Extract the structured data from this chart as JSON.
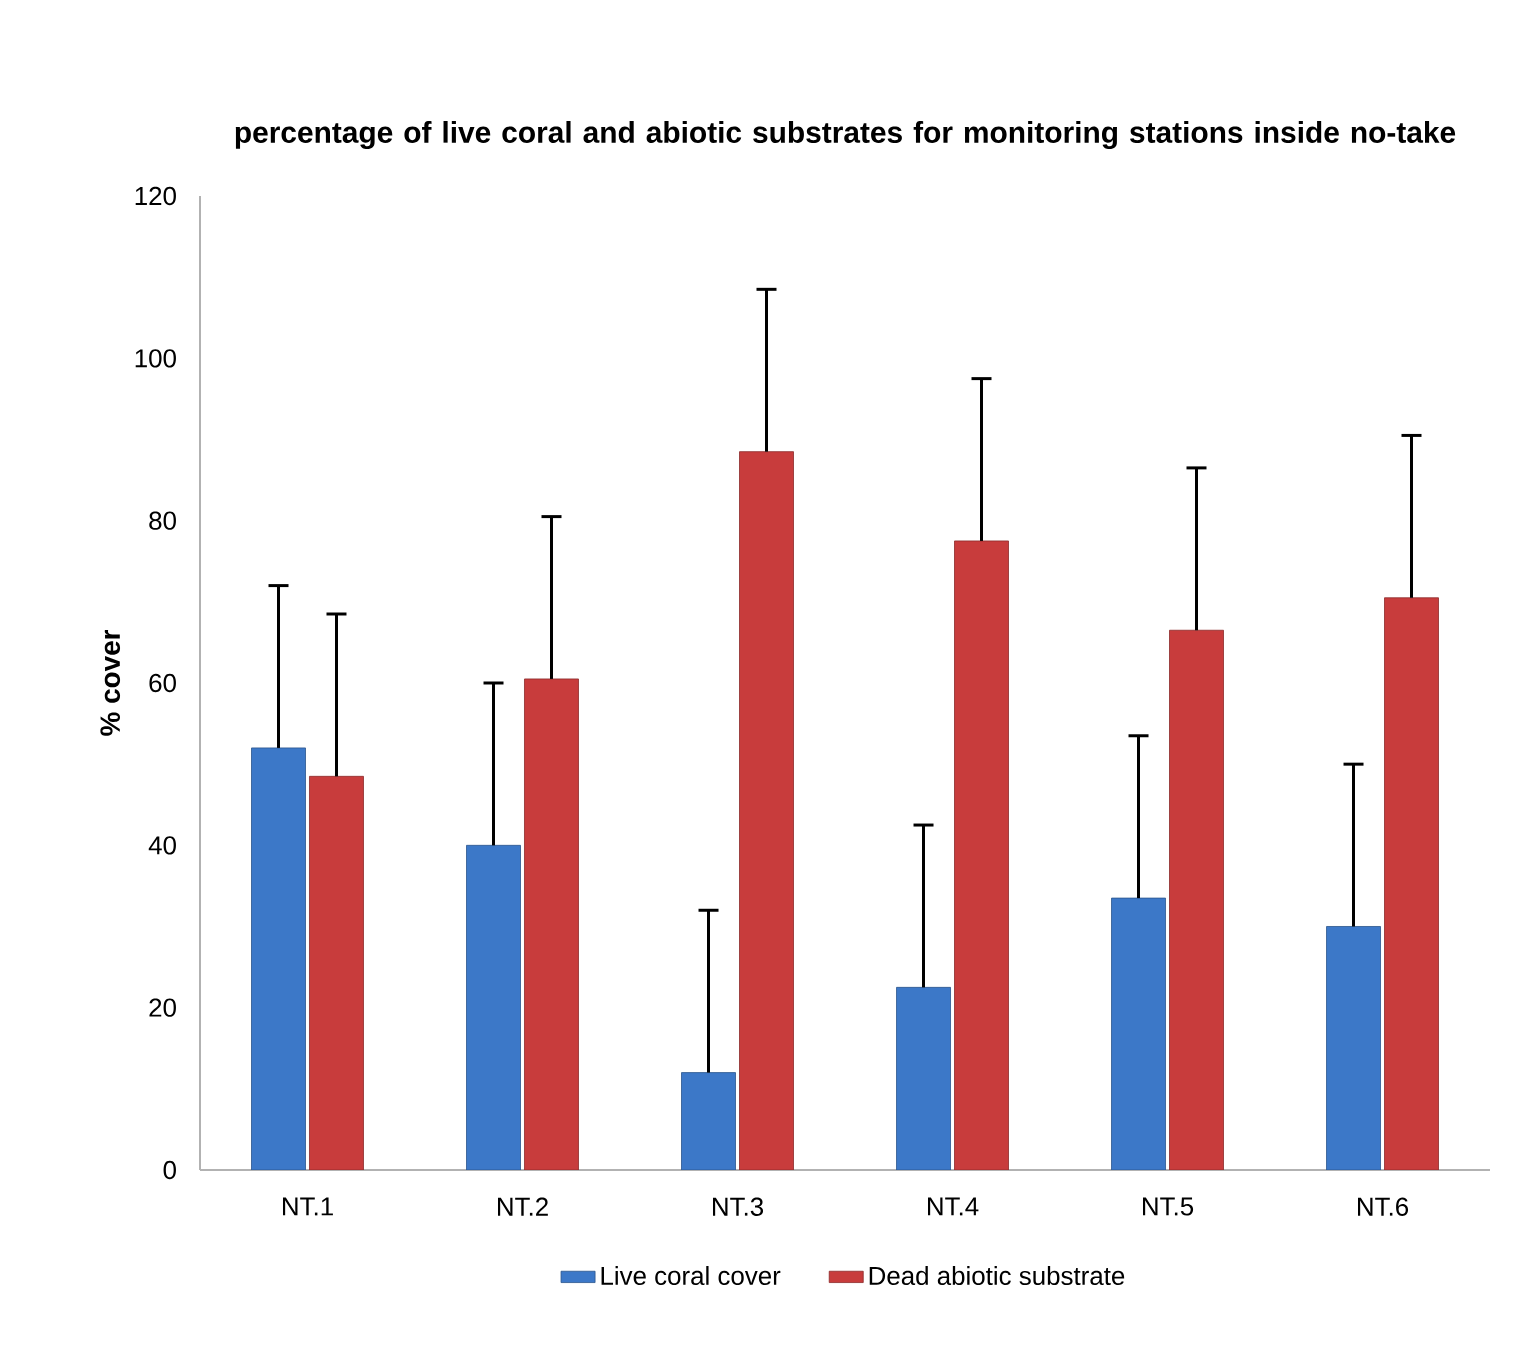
{
  "chart_data": {
    "type": "bar",
    "title": "percentage of live coral and abiotic substrates for monitoring stations inside no-take",
    "ylabel": "% cover",
    "categories": [
      "NT.1",
      "NT.2",
      "NT.3",
      "NT.4",
      "NT.5",
      "NT.6"
    ],
    "series": [
      {
        "name": "Live coral cover",
        "color": "#3c78c8",
        "values": [
          52,
          40,
          12,
          22.5,
          33.5,
          30
        ],
        "errors": [
          [
            52,
            72
          ],
          [
            40,
            60
          ],
          [
            12,
            32
          ],
          [
            22.5,
            42.5
          ],
          [
            33.5,
            53.5
          ],
          [
            30,
            50
          ]
        ]
      },
      {
        "name": "Dead abiotic substrate",
        "color": "#c83c3c",
        "values": [
          48.5,
          60.5,
          88.5,
          77.5,
          66.5,
          70.5
        ],
        "errors": [
          [
            48.5,
            68.5
          ],
          [
            60.5,
            80.5
          ],
          [
            88.5,
            108.5
          ],
          [
            77.5,
            97.5
          ],
          [
            66.5,
            86.5
          ],
          [
            70.5,
            90.5
          ]
        ]
      }
    ],
    "ylim": [
      0,
      120
    ],
    "yticks": [
      0,
      20,
      40,
      60,
      80,
      100,
      120
    ],
    "grid": false,
    "legend": "bottom"
  }
}
